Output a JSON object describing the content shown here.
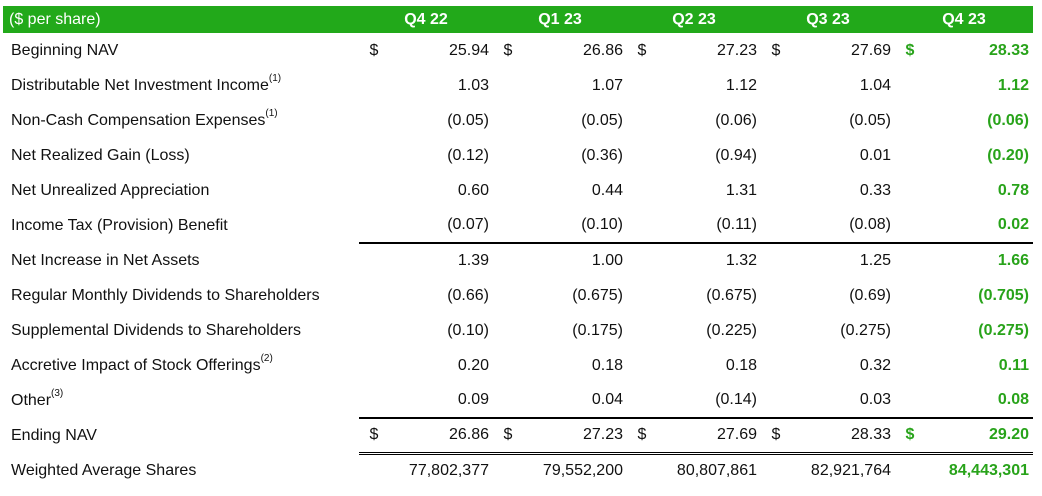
{
  "table": {
    "header_label": "($ per share)",
    "columns": [
      "Q4 22",
      "Q1 23",
      "Q2 23",
      "Q3 23",
      "Q4 23"
    ],
    "currency_symbol": "$",
    "rows": [
      {
        "label": "Beginning NAV",
        "note": "",
        "currency": true,
        "values": [
          "25.94",
          "26.86",
          "27.23",
          "27.69",
          "28.33"
        ]
      },
      {
        "label": "Distributable Net Investment Income",
        "note": "(1)",
        "currency": false,
        "values": [
          "1.03",
          "1.07",
          "1.12",
          "1.04",
          "1.12"
        ]
      },
      {
        "label": "Non-Cash Compensation Expenses",
        "note": "(1)",
        "currency": false,
        "values": [
          "(0.05)",
          "(0.05)",
          "(0.06)",
          "(0.05)",
          "(0.06)"
        ]
      },
      {
        "label": "Net Realized Gain (Loss)",
        "note": "",
        "currency": false,
        "values": [
          "(0.12)",
          "(0.36)",
          "(0.94)",
          "0.01",
          "(0.20)"
        ]
      },
      {
        "label": "Net Unrealized Appreciation",
        "note": "",
        "currency": false,
        "values": [
          "0.60",
          "0.44",
          "1.31",
          "0.33",
          "0.78"
        ]
      },
      {
        "label": "Income Tax (Provision) Benefit",
        "note": "",
        "currency": false,
        "values": [
          "(0.07)",
          "(0.10)",
          "(0.11)",
          "(0.08)",
          "0.02"
        ]
      },
      {
        "label": "Net Increase in Net Assets",
        "note": "",
        "currency": false,
        "values": [
          "1.39",
          "1.00",
          "1.32",
          "1.25",
          "1.66"
        ]
      },
      {
        "label": "Regular Monthly Dividends to Shareholders",
        "note": "",
        "currency": false,
        "values": [
          "(0.66)",
          "(0.675)",
          "(0.675)",
          "(0.69)",
          "(0.705)"
        ]
      },
      {
        "label": "Supplemental Dividends to Shareholders",
        "note": "",
        "currency": false,
        "values": [
          "(0.10)",
          "(0.175)",
          "(0.225)",
          "(0.275)",
          "(0.275)"
        ]
      },
      {
        "label": "Accretive Impact of Stock Offerings",
        "note": "(2)",
        "currency": false,
        "values": [
          "0.20",
          "0.18",
          "0.18",
          "0.32",
          "0.11"
        ]
      },
      {
        "label": "Other",
        "note": "(3)",
        "currency": false,
        "values": [
          "0.09",
          "0.04",
          "(0.14)",
          "0.03",
          "0.08"
        ]
      },
      {
        "label": "Ending NAV",
        "note": "",
        "currency": true,
        "values": [
          "26.86",
          "27.23",
          "27.69",
          "28.33",
          "29.20"
        ]
      },
      {
        "label": "Weighted Average Shares",
        "note": "",
        "currency": false,
        "values": [
          "77,802,377",
          "79,552,200",
          "80,807,861",
          "82,921,764",
          "84,443,301"
        ]
      }
    ]
  },
  "colors": {
    "header_bg": "#22a91a",
    "highlight": "#28a31a"
  }
}
